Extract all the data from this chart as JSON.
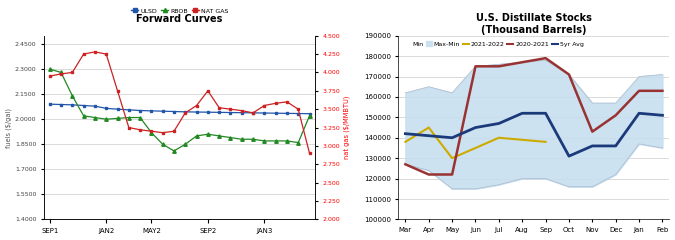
{
  "left": {
    "title": "Forward Curves",
    "xlabel_ticks": [
      "SEP1",
      "JAN2",
      "MAY2",
      "SEP2",
      "JAN3"
    ],
    "tick_positions": [
      0,
      5,
      9,
      14,
      19
    ],
    "ylabel_left": "fuels ($/gal)",
    "ylabel_right": "nat gas ($/MMBTU)",
    "ylim_left": [
      1.4,
      2.5
    ],
    "ylim_right": [
      2.0,
      4.5
    ],
    "yticks_left": [
      1.4,
      1.55,
      1.7,
      1.85,
      2.0,
      2.15,
      2.3,
      2.45
    ],
    "yticks_right": [
      2.0,
      2.25,
      2.5,
      2.75,
      3.0,
      3.25,
      3.5,
      3.75,
      4.0,
      4.25,
      4.5
    ],
    "ulsd": [
      2.09,
      2.088,
      2.086,
      2.082,
      2.078,
      2.065,
      2.06,
      2.056,
      2.052,
      2.05,
      2.048,
      2.046,
      2.044,
      2.043,
      2.042,
      2.041,
      2.04,
      2.039,
      2.038,
      2.037,
      2.036,
      2.035,
      2.034,
      2.033
    ],
    "rbob": [
      2.3,
      2.28,
      2.14,
      2.02,
      2.01,
      2.0,
      2.005,
      2.01,
      2.01,
      1.92,
      1.85,
      1.81,
      1.85,
      1.9,
      1.91,
      1.9,
      1.89,
      1.88,
      1.88,
      1.87,
      1.87,
      1.87,
      1.86,
      2.02
    ],
    "natgas": [
      3.95,
      3.98,
      4.0,
      4.25,
      4.28,
      4.25,
      3.75,
      3.25,
      3.22,
      3.2,
      3.18,
      3.2,
      3.45,
      3.55,
      3.75,
      3.52,
      3.5,
      3.48,
      3.45,
      3.55,
      3.58,
      3.6,
      3.5,
      2.9
    ],
    "ulsd_color": "#2255aa",
    "rbob_color": "#228822",
    "natgas_color": "#cc2222",
    "grid_color": "#cccccc",
    "bg_color": "#ffffff"
  },
  "right": {
    "title": "U.S. Distillate Stocks\n(Thousand Barrels)",
    "months": [
      "Mar",
      "Apr",
      "May",
      "Jun",
      "Jul",
      "Aug",
      "Sep",
      "Oct",
      "Nov",
      "Dec",
      "Jan",
      "Feb"
    ],
    "ylim": [
      100000,
      190000
    ],
    "yticks": [
      100000,
      110000,
      120000,
      130000,
      140000,
      150000,
      160000,
      170000,
      180000,
      190000
    ],
    "min_vals": [
      127000,
      124000,
      115000,
      115000,
      117000,
      120000,
      120000,
      116000,
      116000,
      122000,
      137000,
      135000
    ],
    "max_vals": [
      162000,
      165000,
      162000,
      175000,
      176000,
      177000,
      178000,
      171000,
      157000,
      157000,
      170000,
      171000
    ],
    "yr2021_2022": [
      138000,
      145000,
      130000,
      135000,
      140000,
      139000,
      138000,
      null,
      null,
      null,
      null,
      null
    ],
    "yr2020_2021": [
      127000,
      122000,
      122000,
      175000,
      175000,
      177000,
      179000,
      171000,
      143000,
      151000,
      163000,
      163000
    ],
    "avg5yr": [
      142000,
      141000,
      140000,
      145000,
      147000,
      152000,
      152000,
      131000,
      136000,
      136000,
      152000,
      151000
    ],
    "min_label": "Min",
    "maxmin_label": "Max-Min",
    "y2122_label": "2021-2022",
    "y2021_label": "2020-2021",
    "avg_label": "5yr Avg",
    "fill_color": "#c5ddef",
    "fill_alpha": 0.85,
    "yr2021_color": "#ccaa00",
    "yr2020_color": "#993333",
    "avg_color": "#1a3a7a",
    "min_line_color": "#aabbcc",
    "grid_color": "#cccccc",
    "bg_color": "#ffffff"
  }
}
